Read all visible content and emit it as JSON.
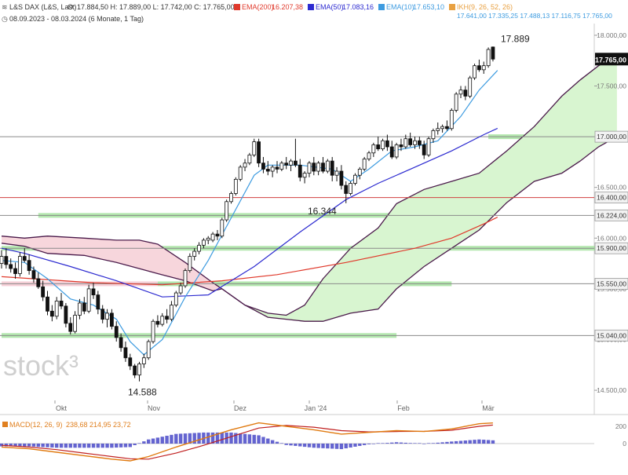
{
  "header": {
    "symbol_line": {
      "name": "L&S DAX (L&S, Last)",
      "ohlc": "O: 17.884,50  H: 17.889,00  L: 17.742,00  C: 17.765,00",
      "ema200": {
        "label": "EMA(200)",
        "value": "16.207,38",
        "color": "#e0392b"
      },
      "ema50": {
        "label": "EMA(50)",
        "value": "17.083,16",
        "color": "#2c2ad0"
      },
      "ema10": {
        "label": "EMA(10)",
        "value": "17.653,10",
        "color": "#3d9be0"
      },
      "ichimoku": {
        "label": "IKH(9, 26, 52, 26)",
        "values": "17.641,00  17.335,25  17.488,13  17.116,75  17.765,00",
        "color": "#e8a040"
      }
    },
    "range_line": "08.09.2023 - 08.03.2024  (6 Monate, 1 Tag)"
  },
  "watermark": "stock³",
  "macd_label": {
    "name": "MACD(12, 26, 9)",
    "values": "238,68  214,95  23,72",
    "color": "#e08020"
  },
  "colors": {
    "candle_up": "#ffffff",
    "candle_down": "#111111",
    "ema200": "#e0392b",
    "ema50": "#2c2ad0",
    "ema10": "#3d9be0",
    "cloud_bull": "#d8f5d0",
    "cloud_bear": "#f7d6dc",
    "cloud_edge": "#4a1a4a",
    "support_zone": "#a6e3a0",
    "resistance_zone": "#f6c8d0",
    "level_line_red": "#d04040",
    "macd_line": "#e07a10",
    "macd_signal": "#c02020",
    "macd_hist": "#3030c0"
  },
  "chart_data": {
    "type": "candlestick",
    "title": "L&S DAX (L&S, Last)",
    "period": "08.09.2023 - 08.03.2024",
    "interval": "1 Tag",
    "ylim": [
      14400,
      18100
    ],
    "x_months": [
      "Okt",
      "Nov",
      "Dez",
      "Jan '24",
      "Feb",
      "Mär"
    ],
    "y_ticks": [
      "18.000,00",
      "17.500,00",
      "17.000,00",
      "16.500,00",
      "16.000,00",
      "15.500,00",
      "15.000,00",
      "14.500,00"
    ],
    "last_price": "17.765,00",
    "annotations": {
      "high": "17.889",
      "mid_low": "16.344",
      "low": "14.588"
    },
    "horizontal_levels": [
      {
        "value": 17000,
        "label": "17.000,00",
        "color": "gray"
      },
      {
        "value": 16400,
        "label": "16.400,00",
        "color": "red"
      },
      {
        "value": 16224,
        "label": "16.224,00",
        "color": "gray"
      },
      {
        "value": 15900,
        "label": "15.900,00",
        "color": "gray"
      },
      {
        "value": 15550,
        "label": "15.550,00",
        "color": "gray"
      },
      {
        "value": 15040,
        "label": "15.040,00",
        "color": "gray"
      }
    ],
    "zones": [
      {
        "value": 17000,
        "from": 106,
        "to": 138,
        "color": "green"
      },
      {
        "value": 16224,
        "from": 8,
        "to": 90,
        "color": "green"
      },
      {
        "value": 15900,
        "from": 0,
        "to": 138,
        "color": "green"
      },
      {
        "value": 15550,
        "from": 0,
        "to": 34,
        "color": "red"
      },
      {
        "value": 15550,
        "from": 34,
        "to": 98,
        "color": "green"
      },
      {
        "value": 15040,
        "from": 0,
        "to": 86,
        "color": "green"
      }
    ],
    "candles": [
      [
        0,
        15750,
        15880,
        15700,
        15820
      ],
      [
        1,
        15820,
        15900,
        15700,
        15740
      ],
      [
        2,
        15740,
        15800,
        15660,
        15700
      ],
      [
        3,
        15700,
        15760,
        15600,
        15650
      ],
      [
        4,
        15650,
        15860,
        15620,
        15820
      ],
      [
        5,
        15820,
        15900,
        15760,
        15780
      ],
      [
        6,
        15780,
        15840,
        15640,
        15680
      ],
      [
        7,
        15680,
        15720,
        15560,
        15600
      ],
      [
        8,
        15600,
        15660,
        15500,
        15520
      ],
      [
        9,
        15520,
        15580,
        15380,
        15420
      ],
      [
        10,
        15420,
        15480,
        15240,
        15280
      ],
      [
        11,
        15280,
        15340,
        15180,
        15230
      ],
      [
        12,
        15230,
        15420,
        15200,
        15380
      ],
      [
        13,
        15380,
        15460,
        15300,
        15330
      ],
      [
        14,
        15330,
        15360,
        15120,
        15160
      ],
      [
        15,
        15160,
        15220,
        15050,
        15080
      ],
      [
        16,
        15080,
        15280,
        15060,
        15240
      ],
      [
        17,
        15240,
        15400,
        15200,
        15360
      ],
      [
        18,
        15360,
        15420,
        15250,
        15280
      ],
      [
        19,
        15280,
        15540,
        15260,
        15500
      ],
      [
        20,
        15500,
        15560,
        15400,
        15440
      ],
      [
        21,
        15440,
        15480,
        15250,
        15300
      ],
      [
        22,
        15300,
        15340,
        15160,
        15200
      ],
      [
        23,
        15200,
        15300,
        15120,
        15260
      ],
      [
        24,
        15260,
        15300,
        15100,
        15130
      ],
      [
        25,
        15130,
        15180,
        14980,
        15020
      ],
      [
        26,
        15020,
        15060,
        14880,
        14920
      ],
      [
        27,
        14920,
        14980,
        14780,
        14820
      ],
      [
        28,
        14820,
        14860,
        14700,
        14740
      ],
      [
        29,
        14740,
        14760,
        14620,
        14650
      ],
      [
        30,
        14650,
        14780,
        14588,
        14760
      ],
      [
        31,
        14760,
        14860,
        14720,
        14820
      ],
      [
        32,
        14820,
        15000,
        14800,
        14980
      ],
      [
        33,
        14980,
        15200,
        14960,
        15180
      ],
      [
        34,
        15180,
        15240,
        15120,
        15150
      ],
      [
        35,
        15150,
        15260,
        15130,
        15230
      ],
      [
        36,
        15230,
        15300,
        15160,
        15200
      ],
      [
        37,
        15200,
        15380,
        15180,
        15340
      ],
      [
        38,
        15340,
        15480,
        15320,
        15460
      ],
      [
        39,
        15460,
        15560,
        15440,
        15530
      ],
      [
        40,
        15530,
        15700,
        15510,
        15680
      ],
      [
        41,
        15680,
        15850,
        15660,
        15820
      ],
      [
        42,
        15820,
        15900,
        15780,
        15870
      ],
      [
        43,
        15870,
        15960,
        15840,
        15930
      ],
      [
        44,
        15930,
        16000,
        15900,
        15980
      ],
      [
        45,
        15980,
        16020,
        15940,
        16000
      ],
      [
        46,
        15980,
        16060,
        15960,
        16040
      ],
      [
        47,
        16040,
        16080,
        15980,
        16020
      ],
      [
        48,
        16020,
        16200,
        16000,
        16180
      ],
      [
        49,
        16180,
        16380,
        16160,
        16360
      ],
      [
        50,
        16360,
        16460,
        16340,
        16440
      ],
      [
        51,
        16440,
        16600,
        16420,
        16580
      ],
      [
        52,
        16580,
        16720,
        16560,
        16700
      ],
      [
        53,
        16700,
        16780,
        16660,
        16740
      ],
      [
        54,
        16740,
        16840,
        16720,
        16820
      ],
      [
        55,
        16820,
        16980,
        16800,
        16950
      ],
      [
        56,
        16950,
        16980,
        16700,
        16740
      ],
      [
        57,
        16740,
        16800,
        16640,
        16680
      ],
      [
        58,
        16680,
        16760,
        16620,
        16660
      ],
      [
        59,
        16660,
        16720,
        16600,
        16700
      ],
      [
        60,
        16700,
        16760,
        16640,
        16680
      ],
      [
        61,
        16680,
        16760,
        16660,
        16740
      ],
      [
        62,
        16740,
        16800,
        16680,
        16720
      ],
      [
        63,
        16720,
        16780,
        16660,
        16760
      ],
      [
        64,
        16760,
        16980,
        16700,
        16720
      ],
      [
        65,
        16720,
        16780,
        16560,
        16600
      ],
      [
        66,
        16600,
        16660,
        16540,
        16640
      ],
      [
        67,
        16640,
        16760,
        16600,
        16740
      ],
      [
        68,
        16740,
        16800,
        16620,
        16660
      ],
      [
        69,
        16660,
        16760,
        16620,
        16740
      ],
      [
        70,
        16740,
        16800,
        16640,
        16660
      ],
      [
        71,
        16660,
        16780,
        16640,
        16760
      ],
      [
        72,
        16760,
        16800,
        16560,
        16620
      ],
      [
        73,
        16620,
        16700,
        16560,
        16660
      ],
      [
        74,
        16660,
        16720,
        16480,
        16520
      ],
      [
        75,
        16520,
        16560,
        16344,
        16440
      ],
      [
        76,
        16440,
        16560,
        16420,
        16540
      ],
      [
        77,
        16540,
        16640,
        16520,
        16620
      ],
      [
        78,
        16620,
        16700,
        16580,
        16680
      ],
      [
        79,
        16680,
        16800,
        16660,
        16780
      ],
      [
        80,
        16780,
        16860,
        16760,
        16840
      ],
      [
        81,
        16840,
        16940,
        16800,
        16920
      ],
      [
        82,
        16920,
        17000,
        16860,
        16880
      ],
      [
        83,
        16880,
        16980,
        16860,
        16960
      ],
      [
        84,
        16960,
        17020,
        16860,
        16900
      ],
      [
        85,
        16900,
        16960,
        16780,
        16800
      ],
      [
        86,
        16800,
        16940,
        16780,
        16920
      ],
      [
        87,
        16920,
        16980,
        16860,
        16900
      ],
      [
        88,
        16900,
        17020,
        16880,
        16980
      ],
      [
        89,
        16980,
        17040,
        16900,
        16920
      ],
      [
        90,
        16920,
        17000,
        16880,
        16960
      ],
      [
        91,
        16960,
        17000,
        16880,
        16920
      ],
      [
        92,
        16920,
        16960,
        16780,
        16820
      ],
      [
        93,
        16820,
        17000,
        16800,
        16980
      ],
      [
        94,
        16980,
        17080,
        16940,
        17060
      ],
      [
        95,
        17060,
        17140,
        17020,
        17080
      ],
      [
        96,
        17080,
        17120,
        17040,
        17100
      ],
      [
        97,
        17100,
        17160,
        17060,
        17080
      ],
      [
        98,
        17080,
        17280,
        17060,
        17260
      ],
      [
        99,
        17260,
        17440,
        17240,
        17420
      ],
      [
        100,
        17420,
        17500,
        17380,
        17460
      ],
      [
        101,
        17460,
        17500,
        17360,
        17400
      ],
      [
        102,
        17400,
        17600,
        17380,
        17580
      ],
      [
        103,
        17580,
        17720,
        17560,
        17700
      ],
      [
        104,
        17700,
        17760,
        17640,
        17660
      ],
      [
        105,
        17660,
        17740,
        17620,
        17700
      ],
      [
        106,
        17700,
        17880,
        17680,
        17860
      ],
      [
        107,
        17884.5,
        17889,
        17742,
        17765
      ]
    ],
    "series": [
      {
        "name": "EMA(200)",
        "color": "#e0392b",
        "points": [
          [
            0,
            15620
          ],
          [
            20,
            15560
          ],
          [
            35,
            15540
          ],
          [
            48,
            15580
          ],
          [
            60,
            15640
          ],
          [
            75,
            15760
          ],
          [
            90,
            15900
          ],
          [
            98,
            16000
          ],
          [
            105,
            16140
          ],
          [
            108,
            16207
          ]
        ]
      },
      {
        "name": "EMA(50)",
        "color": "#2c2ad0",
        "points": [
          [
            0,
            15900
          ],
          [
            5,
            15850
          ],
          [
            15,
            15720
          ],
          [
            25,
            15580
          ],
          [
            35,
            15420
          ],
          [
            45,
            15440
          ],
          [
            55,
            15720
          ],
          [
            65,
            16060
          ],
          [
            75,
            16380
          ],
          [
            82,
            16540
          ],
          [
            90,
            16700
          ],
          [
            98,
            16860
          ],
          [
            105,
            17020
          ],
          [
            108,
            17083
          ]
        ]
      },
      {
        "name": "EMA(10)",
        "color": "#3d9be0",
        "points": [
          [
            0,
            15780
          ],
          [
            5,
            15760
          ],
          [
            10,
            15600
          ],
          [
            15,
            15400
          ],
          [
            20,
            15340
          ],
          [
            25,
            15200
          ],
          [
            28,
            14980
          ],
          [
            31,
            14850
          ],
          [
            35,
            15000
          ],
          [
            40,
            15420
          ],
          [
            45,
            15780
          ],
          [
            50,
            16200
          ],
          [
            55,
            16620
          ],
          [
            58,
            16720
          ],
          [
            65,
            16720
          ],
          [
            72,
            16680
          ],
          [
            76,
            16560
          ],
          [
            80,
            16680
          ],
          [
            85,
            16860
          ],
          [
            90,
            16900
          ],
          [
            95,
            16960
          ],
          [
            100,
            17200
          ],
          [
            104,
            17460
          ],
          [
            108,
            17653
          ]
        ]
      }
    ],
    "ichimoku": {
      "name": "IKH(9, 26, 52, 26)",
      "span_a": [
        [
          0,
          15950
        ],
        [
          5,
          15920
        ],
        [
          10,
          15850
        ],
        [
          18,
          15830
        ],
        [
          25,
          15760
        ],
        [
          30,
          15700
        ],
        [
          34,
          15650
        ],
        [
          40,
          15580
        ],
        [
          46,
          15480
        ],
        [
          48,
          15500
        ],
        [
          53,
          15340
        ],
        [
          58,
          15260
        ],
        [
          62,
          15240
        ],
        [
          66,
          15340
        ],
        [
          70,
          15600
        ],
        [
          76,
          15900
        ],
        [
          82,
          16100
        ],
        [
          86,
          16340
        ],
        [
          92,
          16480
        ],
        [
          98,
          16560
        ],
        [
          104,
          16640
        ],
        [
          110,
          16860
        ],
        [
          116,
          17100
        ],
        [
          122,
          17400
        ],
        [
          126,
          17560
        ],
        [
          130,
          17700
        ],
        [
          134,
          17800
        ]
      ],
      "span_b": [
        [
          0,
          16020
        ],
        [
          5,
          16000
        ],
        [
          10,
          16020
        ],
        [
          18,
          16000
        ],
        [
          25,
          15980
        ],
        [
          30,
          15980
        ],
        [
          34,
          15940
        ],
        [
          40,
          15760
        ],
        [
          46,
          15560
        ],
        [
          48,
          15500
        ],
        [
          53,
          15340
        ],
        [
          58,
          15220
        ],
        [
          62,
          15200
        ],
        [
          66,
          15180
        ],
        [
          70,
          15180
        ],
        [
          76,
          15260
        ],
        [
          82,
          15300
        ],
        [
          86,
          15500
        ],
        [
          92,
          15720
        ],
        [
          98,
          15900
        ],
        [
          104,
          16080
        ],
        [
          110,
          16350
        ],
        [
          116,
          16560
        ],
        [
          122,
          16640
        ],
        [
          126,
          16760
        ],
        [
          130,
          16900
        ],
        [
          134,
          17000
        ]
      ]
    },
    "macd": {
      "name": "MACD(12, 26, 9)",
      "values": [
        238.68,
        214.95,
        23.72
      ]
    }
  }
}
